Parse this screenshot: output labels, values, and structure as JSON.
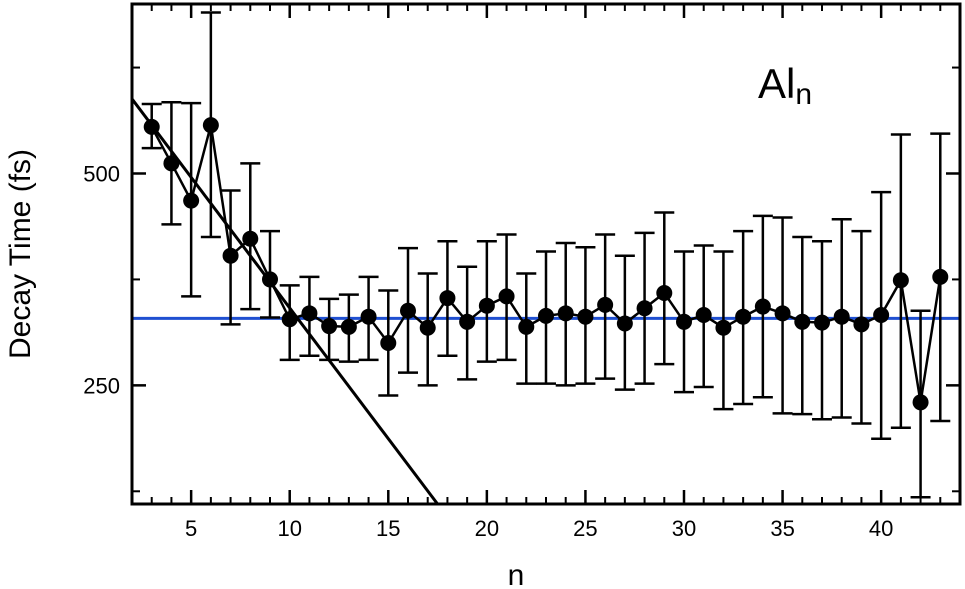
{
  "chart_data": {
    "type": "scatter",
    "title": "",
    "xlabel": "n",
    "ylabel": "Decay Time (fs)",
    "annotation": {
      "main": "Al",
      "sub": "n"
    },
    "xlim": [
      2,
      44
    ],
    "ylim": [
      110,
      700
    ],
    "x_ticks": [
      5,
      10,
      15,
      20,
      25,
      30,
      35,
      40
    ],
    "x_minor_ticks": [
      1,
      2,
      3,
      4,
      6,
      7,
      8,
      9,
      11,
      12,
      13,
      14,
      16,
      17,
      18,
      19,
      21,
      22,
      23,
      24,
      26,
      27,
      28,
      29,
      31,
      32,
      33,
      34,
      36,
      37,
      38,
      39,
      41,
      42,
      43,
      44
    ],
    "y_ticks": [
      250,
      500
    ],
    "y_minor_ticks": [
      125,
      375,
      625
    ],
    "grid": false,
    "colors": {
      "data": "#000000",
      "fit_line": "#000000",
      "reference_line": "#1f4fd1"
    },
    "series": [
      {
        "x": [
          3,
          4,
          5,
          6,
          7,
          8,
          9,
          10,
          11,
          12,
          13,
          14,
          15,
          16,
          17,
          18,
          19,
          20,
          21,
          22,
          23,
          24,
          25,
          26,
          27,
          28,
          29,
          30,
          31,
          32,
          33,
          34,
          35,
          36,
          37,
          38,
          39,
          40,
          41,
          42,
          43
        ],
        "y": [
          555,
          512,
          468,
          557,
          403,
          423,
          375,
          328,
          335,
          320,
          319,
          331,
          300,
          338,
          318,
          353,
          325,
          344,
          355,
          319,
          332,
          335,
          331,
          345,
          323,
          341,
          359,
          325,
          333,
          318,
          331,
          343,
          335,
          325,
          324,
          331,
          322,
          333,
          374,
          230,
          378
        ],
        "err_low": [
          530,
          440,
          355,
          425,
          322,
          340,
          330,
          280,
          285,
          280,
          278,
          280,
          238,
          265,
          250,
          285,
          257,
          278,
          280,
          252,
          252,
          250,
          252,
          258,
          245,
          252,
          275,
          242,
          248,
          222,
          228,
          236,
          217,
          216,
          210,
          212,
          205,
          187,
          200,
          118,
          208
        ],
        "err_high": [
          582,
          584,
          583,
          690,
          480,
          512,
          432,
          368,
          378,
          352,
          357,
          378,
          362,
          412,
          382,
          420,
          390,
          420,
          428,
          382,
          408,
          418,
          413,
          428,
          403,
          430,
          454,
          408,
          415,
          408,
          432,
          450,
          448,
          425,
          420,
          446,
          432,
          478,
          546,
          338,
          547
        ]
      }
    ],
    "fit_line": {
      "x": [
        2,
        17.5
      ],
      "y": [
        588,
        110
      ]
    },
    "reference_line": {
      "y": 329
    }
  }
}
